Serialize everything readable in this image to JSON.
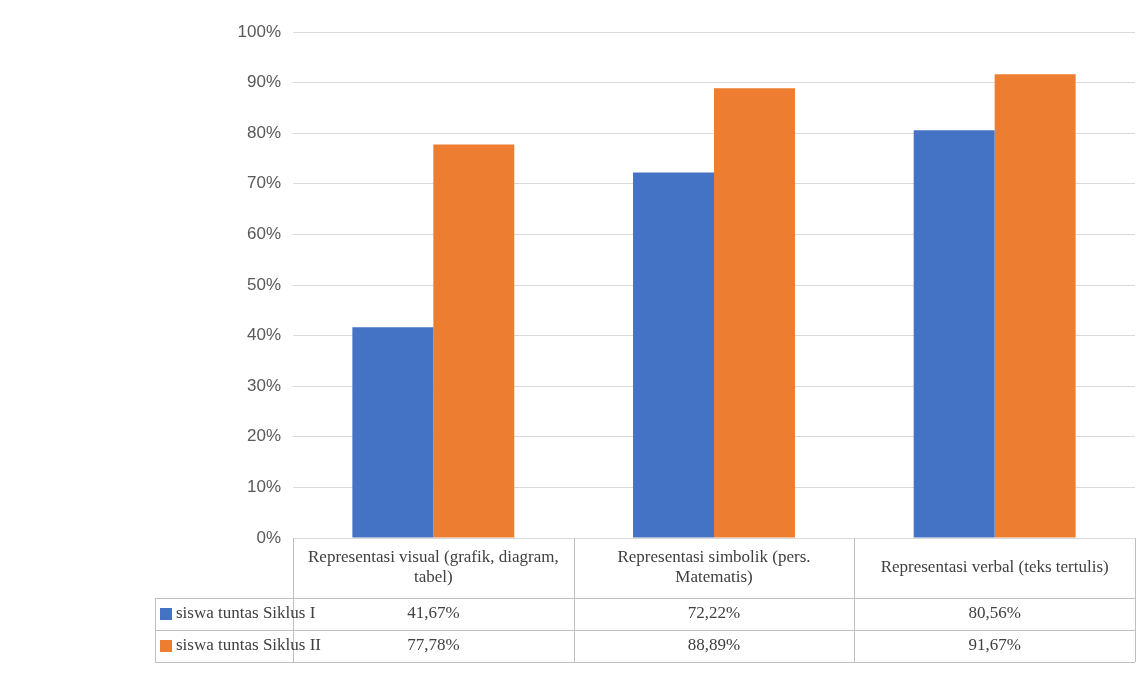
{
  "chart_data": {
    "type": "bar",
    "categories": [
      "Representasi visual (grafik, diagram, tabel)",
      "Representasi simbolik (pers. Matematis)",
      "Representasi verbal (teks tertulis)"
    ],
    "series": [
      {
        "name": "siswa tuntas Siklus I",
        "color": "#4472c4",
        "values": [
          41.67,
          72.22,
          80.56
        ],
        "value_labels": [
          "41,67%",
          "72,22%",
          "80,56%"
        ]
      },
      {
        "name": "siswa tuntas Siklus II",
        "color": "#ed7d31",
        "values": [
          77.78,
          88.89,
          91.67
        ],
        "value_labels": [
          "77,78%",
          "88,89%",
          "91,67%"
        ]
      }
    ],
    "ylim": [
      0,
      100
    ],
    "yticks": [
      {
        "value": 0,
        "label": "0%"
      },
      {
        "value": 10,
        "label": "10%"
      },
      {
        "value": 20,
        "label": "20%"
      },
      {
        "value": 30,
        "label": "30%"
      },
      {
        "value": 40,
        "label": "40%"
      },
      {
        "value": 50,
        "label": "50%"
      },
      {
        "value": 60,
        "label": "60%"
      },
      {
        "value": 70,
        "label": "70%"
      },
      {
        "value": 80,
        "label": "80%"
      },
      {
        "value": 90,
        "label": "90%"
      },
      {
        "value": 100,
        "label": "100%"
      }
    ],
    "grid": "y",
    "legend": "bottom"
  }
}
